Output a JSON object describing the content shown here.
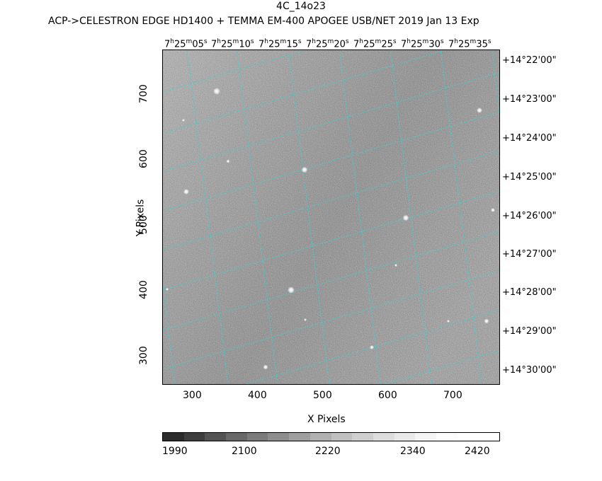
{
  "header": {
    "title": "4C_14o23",
    "subtitle": "ACP->CELESTRON EDGE HD1400 + TEMMA EM-400 APOGEE USB/NET   2019 Jan 13    Exp"
  },
  "axes": {
    "xlabel": "X Pixels",
    "ylabel": "Y Pixels",
    "xticks": [
      "300",
      "400",
      "500",
      "600",
      "700"
    ],
    "yticks": [
      "300",
      "400",
      "500",
      "600",
      "700"
    ]
  },
  "ra_labels": [
    {
      "h": "7",
      "m": "25",
      "s": "05"
    },
    {
      "h": "7",
      "m": "25",
      "s": "10"
    },
    {
      "h": "7",
      "m": "25",
      "s": "15"
    },
    {
      "h": "7",
      "m": "25",
      "s": "20"
    },
    {
      "h": "7",
      "m": "25",
      "s": "25"
    },
    {
      "h": "7",
      "m": "25",
      "s": "30"
    },
    {
      "h": "7",
      "m": "25",
      "s": "35"
    }
  ],
  "dec_labels": [
    "+14°22'00\"",
    "+14°23'00\"",
    "+14°24'00\"",
    "+14°25'00\"",
    "+14°26'00\"",
    "+14°27'00\"",
    "+14°28'00\"",
    "+14°29'00\"",
    "+14°30'00\""
  ],
  "colorbar": {
    "labels": [
      "1990",
      "2100",
      "2220",
      "2340",
      "2420"
    ]
  },
  "colors": {
    "grid": "#3fd0d0",
    "background_gray": "#8a8a8a"
  }
}
